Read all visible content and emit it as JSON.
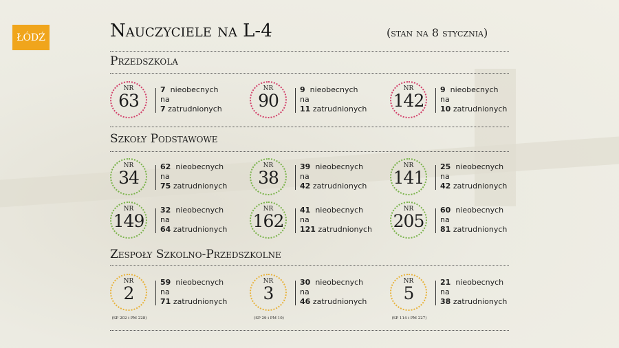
{
  "logo": {
    "text": "ŁÓDŹ",
    "color": "#f0a51c"
  },
  "title": "Nauczyciele na L-4",
  "subtitle": "(stan na 8 stycznia)",
  "labels": {
    "nr": "NR",
    "absent": "nieobecnych",
    "on": "na",
    "employed": "zatrudnionych"
  },
  "sections": [
    {
      "title": "Przedszkola",
      "color": "#d2406a",
      "items": [
        {
          "nr": "63",
          "absent": "7",
          "employed": "7"
        },
        {
          "nr": "90",
          "absent": "9",
          "employed": "11"
        },
        {
          "nr": "142",
          "absent": "9",
          "employed": "10"
        }
      ]
    },
    {
      "title": "Szkoły Podstawowe",
      "color": "#7ab34a",
      "items": [
        {
          "nr": "34",
          "absent": "62",
          "employed": "75"
        },
        {
          "nr": "38",
          "absent": "39",
          "employed": "42"
        },
        {
          "nr": "141",
          "absent": "25",
          "employed": "42"
        },
        {
          "nr": "149",
          "absent": "32",
          "employed": "64"
        },
        {
          "nr": "162",
          "absent": "41",
          "employed": "121"
        },
        {
          "nr": "205",
          "absent": "60",
          "employed": "81"
        }
      ]
    },
    {
      "title": "Zespoły Szkolno-Przedszkolne",
      "color": "#e8b23a",
      "items": [
        {
          "nr": "2",
          "absent": "59",
          "employed": "71",
          "note": "(SP 202 i PM 228)"
        },
        {
          "nr": "3",
          "absent": "30",
          "employed": "46",
          "note": "(SP 29 i PM 10)"
        },
        {
          "nr": "5",
          "absent": "21",
          "employed": "38",
          "note": "(SP 114 i PM 227)"
        }
      ]
    }
  ]
}
